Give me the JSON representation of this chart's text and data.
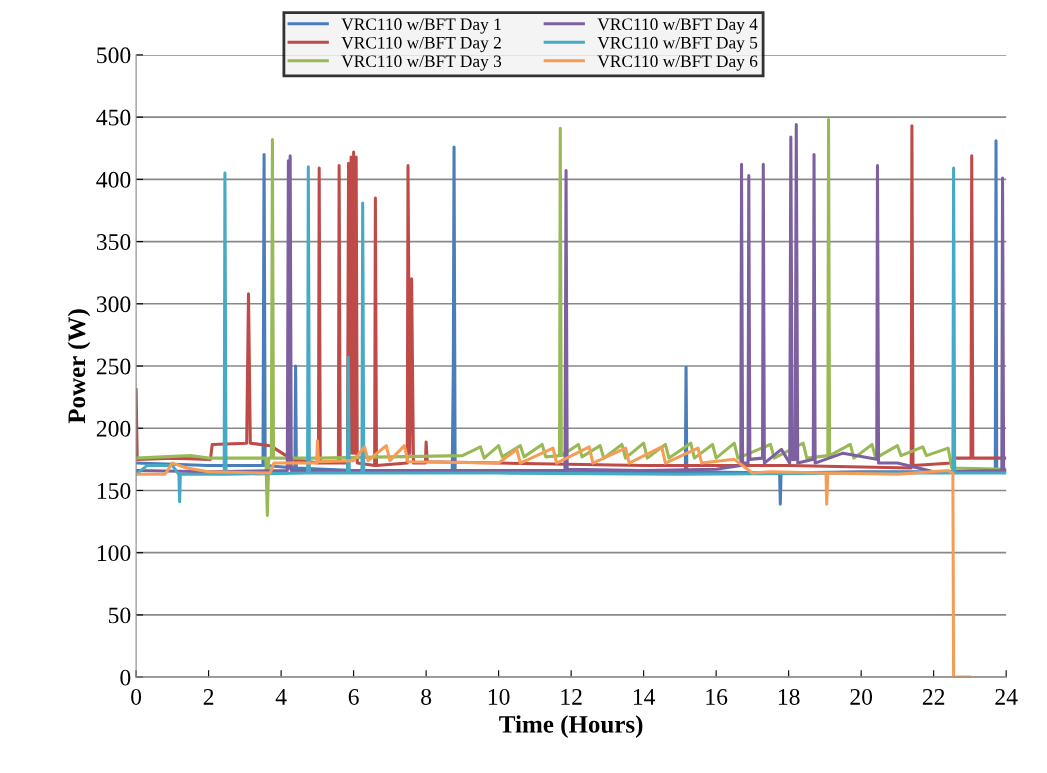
{
  "chart_data": {
    "type": "line",
    "xlabel": "Time (Hours)",
    "ylabel": "Power (W)",
    "xlim": [
      0,
      24
    ],
    "xticks": [
      0,
      2,
      4,
      6,
      8,
      10,
      12,
      14,
      16,
      18,
      20,
      22,
      24
    ],
    "ylim": [
      0,
      500
    ],
    "yticks": [
      0,
      50,
      100,
      150,
      200,
      250,
      300,
      350,
      400,
      450,
      500
    ],
    "grid": "y",
    "legend": "top",
    "marker": "none",
    "line_style": "solid",
    "series": [
      {
        "name": "VRC110 w/BFT Day 1",
        "color": "#4a7ebb",
        "x": [
          0,
          1.0,
          2.0,
          3.5,
          3.53,
          3.56,
          4.38,
          4.4,
          4.42,
          6,
          8.72,
          8.75,
          8.77,
          8.8,
          12,
          15.15,
          15.17,
          15.19,
          17.75,
          17.77,
          17.79,
          20,
          23.7,
          23.72,
          23.74,
          24
        ],
        "values": [
          172,
          171,
          170,
          170,
          420,
          170,
          168,
          250,
          168,
          166,
          166,
          250,
          426,
          166,
          165,
          165,
          249,
          165,
          164,
          139,
          164,
          165,
          165,
          431,
          165,
          165
        ]
      },
      {
        "name": "VRC110 w/BFT Day 2",
        "color": "#be4b48",
        "x": [
          0,
          0.03,
          1,
          2.05,
          2.1,
          3.05,
          3.1,
          3.15,
          3.7,
          4.3,
          5.03,
          5.05,
          5.08,
          5.58,
          5.6,
          5.63,
          5.83,
          5.86,
          5.9,
          5.93,
          5.97,
          6.0,
          6.04,
          6.07,
          6.1,
          6.58,
          6.6,
          6.63,
          7.48,
          7.5,
          7.55,
          7.6,
          7.65,
          7.98,
          8.0,
          8.03,
          10,
          14,
          18,
          21.38,
          21.4,
          21.43,
          22.5,
          22.55,
          23.03,
          23.05,
          23.08,
          24
        ],
        "values": [
          231,
          175,
          176,
          175,
          187,
          188,
          308,
          188,
          186,
          175,
          172,
          409,
          172,
          172,
          411,
          172,
          172,
          413,
          180,
          418,
          180,
          422,
          180,
          418,
          172,
          170,
          385,
          170,
          172,
          411,
          180,
          320,
          172,
          172,
          189,
          173,
          172,
          170,
          170,
          168,
          443,
          170,
          172,
          176,
          176,
          419,
          176,
          176
        ]
      },
      {
        "name": "VRC110 w/BFT Day 3",
        "color": "#98b954",
        "x": [
          0,
          1.5,
          2,
          3.58,
          3.62,
          3.66,
          3.73,
          3.76,
          3.79,
          5,
          7,
          9,
          9.5,
          9.6,
          10,
          10.1,
          10.6,
          10.7,
          11.2,
          11.3,
          11.68,
          11.7,
          11.73,
          12.2,
          12.3,
          12.8,
          12.9,
          13.4,
          13.5,
          14,
          14.1,
          14.6,
          14.7,
          15.3,
          15.4,
          15.9,
          16,
          16.5,
          16.6,
          17.5,
          17.6,
          18.4,
          18.5,
          19.08,
          19.1,
          19.13,
          19.7,
          19.8,
          20.3,
          20.4,
          21,
          21.1,
          21.7,
          21.8,
          22.4,
          22.5,
          24
        ],
        "values": [
          176,
          178,
          176,
          176,
          130,
          176,
          176,
          432,
          176,
          176,
          177,
          178,
          185,
          176,
          186,
          177,
          186,
          177,
          187,
          177,
          178,
          441,
          178,
          187,
          177,
          186,
          176,
          187,
          176,
          188,
          176,
          187,
          176,
          188,
          176,
          187,
          176,
          188,
          176,
          187,
          176,
          188,
          176,
          178,
          448,
          178,
          187,
          176,
          187,
          176,
          186,
          178,
          185,
          178,
          184,
          168,
          167
        ]
      },
      {
        "name": "VRC110 w/BFT Day 4",
        "color": "#7d60a0",
        "x": [
          0,
          2,
          4.17,
          4.2,
          4.23,
          4.25,
          4.28,
          8,
          11.83,
          11.86,
          11.89,
          14,
          16,
          16.68,
          16.7,
          16.73,
          16.88,
          16.9,
          16.93,
          17.28,
          17.3,
          17.33,
          17.8,
          18.03,
          18.06,
          18.1,
          18.18,
          18.21,
          18.25,
          18.68,
          18.7,
          18.73,
          19.5,
          20.43,
          20.45,
          20.48,
          21,
          22,
          23.88,
          23.9,
          23.93,
          24
        ],
        "values": [
          166,
          165,
          166,
          415,
          168,
          419,
          166,
          166,
          166,
          407,
          167,
          166,
          167,
          170,
          412,
          172,
          172,
          403,
          175,
          176,
          412,
          172,
          183,
          172,
          434,
          175,
          175,
          444,
          172,
          175,
          420,
          172,
          180,
          175,
          411,
          172,
          172,
          165,
          166,
          401,
          166,
          166
        ]
      },
      {
        "name": "VRC110 w/BFT Day 5",
        "color": "#46aac5",
        "x": [
          0,
          0.3,
          1.0,
          1.18,
          1.2,
          1.22,
          2.43,
          2.45,
          2.48,
          4.73,
          4.75,
          4.78,
          5.83,
          5.85,
          5.88,
          6.23,
          6.25,
          6.28,
          10,
          15,
          20,
          22.53,
          22.55,
          22.58,
          24
        ],
        "values": [
          163,
          170,
          170,
          163,
          141,
          163,
          163,
          405,
          163,
          164,
          410,
          164,
          164,
          257,
          164,
          164,
          381,
          164,
          164,
          163,
          164,
          164,
          409,
          164,
          164
        ]
      },
      {
        "name": "VRC110 w/BFT Day 6",
        "color": "#f59d56",
        "x": [
          0,
          0.8,
          1,
          1.4,
          2,
          3.7,
          3.8,
          4.98,
          5.0,
          5.03,
          6,
          6.3,
          6.4,
          6.9,
          7.0,
          7.4,
          7.5,
          10,
          10.5,
          10.6,
          11.5,
          11.6,
          12.5,
          12.6,
          13.5,
          13.6,
          14.5,
          14.6,
          15.5,
          15.6,
          16.5,
          17,
          17.5,
          19.03,
          19.05,
          19.08,
          21,
          22.4,
          22.53,
          22.55,
          23.0
        ],
        "values": [
          163,
          163,
          172,
          168,
          165,
          164,
          172,
          172,
          190,
          173,
          174,
          185,
          174,
          186,
          174,
          186,
          173,
          172,
          183,
          172,
          184,
          172,
          185,
          172,
          184,
          172,
          185,
          172,
          184,
          172,
          175,
          164,
          165,
          164,
          139,
          164,
          163,
          166,
          164,
          0,
          0
        ]
      }
    ]
  }
}
